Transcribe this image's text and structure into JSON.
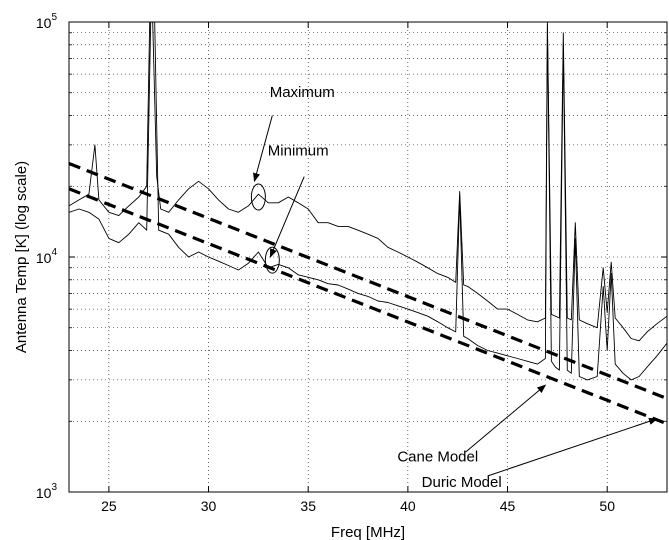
{
  "chart_data": {
    "type": "line",
    "xlabel": "Freq [MHz]",
    "ylabel": "Antenna Temp [K] (log scale)",
    "xlim": [
      23,
      53
    ],
    "ylim": [
      1000,
      100000
    ],
    "yscale": "log",
    "grid": true,
    "grid_style": "dotted",
    "x_ticks": [
      25,
      30,
      35,
      40,
      45,
      50
    ],
    "x_tick_labels": [
      "25",
      "30",
      "35",
      "40",
      "45",
      "50"
    ],
    "y_ticks": [
      1000,
      10000,
      100000
    ],
    "y_tick_labels": [
      {
        "base": "10",
        "exp": "3"
      },
      {
        "base": "10",
        "exp": "4"
      },
      {
        "base": "10",
        "exp": "5"
      }
    ],
    "series": [
      {
        "style": "thin-solid",
        "points": [
          [
            23.0,
            16500
          ],
          [
            23.5,
            17500
          ],
          [
            24.0,
            18500
          ],
          [
            24.3,
            30000
          ],
          [
            24.5,
            17500
          ],
          [
            25.0,
            15500
          ],
          [
            25.5,
            15000
          ],
          [
            26.0,
            16500
          ],
          [
            26.5,
            18000
          ],
          [
            26.9,
            20000
          ],
          [
            27.05,
            100000
          ],
          [
            27.2,
            100000
          ],
          [
            27.4,
            22000
          ],
          [
            27.6,
            16000
          ],
          [
            28.0,
            15500
          ],
          [
            28.5,
            17500
          ],
          [
            29.0,
            19500
          ],
          [
            29.5,
            21000
          ],
          [
            30.0,
            19500
          ],
          [
            30.5,
            17500
          ],
          [
            31.0,
            16000
          ],
          [
            31.5,
            15500
          ],
          [
            32.0,
            16500
          ],
          [
            32.5,
            18500
          ],
          [
            33.0,
            17000
          ],
          [
            33.5,
            17000
          ],
          [
            34.0,
            18000
          ],
          [
            34.5,
            17000
          ],
          [
            35.0,
            16000
          ],
          [
            35.5,
            14000
          ],
          [
            36.0,
            14000
          ],
          [
            36.5,
            13500
          ],
          [
            37.0,
            13500
          ],
          [
            37.5,
            13000
          ],
          [
            38.0,
            12500
          ],
          [
            38.5,
            12000
          ],
          [
            39.0,
            11000
          ],
          [
            39.5,
            10500
          ],
          [
            40.0,
            10000
          ],
          [
            40.5,
            9500
          ],
          [
            41.0,
            9000
          ],
          [
            41.5,
            8500
          ],
          [
            42.0,
            8200
          ],
          [
            42.4,
            7800
          ],
          [
            42.6,
            19000
          ],
          [
            42.8,
            7600
          ],
          [
            43.0,
            7500
          ],
          [
            43.5,
            7000
          ],
          [
            44.0,
            6500
          ],
          [
            44.5,
            6000
          ],
          [
            45.0,
            6000
          ],
          [
            45.5,
            5700
          ],
          [
            46.0,
            5400
          ],
          [
            46.5,
            5300
          ],
          [
            46.9,
            5500
          ],
          [
            47.0,
            100000
          ],
          [
            47.2,
            5700
          ],
          [
            47.4,
            5600
          ],
          [
            47.6,
            5500
          ],
          [
            47.8,
            90000
          ],
          [
            48.0,
            5500
          ],
          [
            48.2,
            5400
          ],
          [
            48.4,
            14000
          ],
          [
            48.6,
            5400
          ],
          [
            49.0,
            5200
          ],
          [
            49.5,
            5000
          ],
          [
            49.8,
            9000
          ],
          [
            50.0,
            5800
          ],
          [
            50.2,
            9500
          ],
          [
            50.4,
            5500
          ],
          [
            50.8,
            5000
          ],
          [
            51.2,
            4500
          ],
          [
            51.6,
            4400
          ],
          [
            52.0,
            4800
          ],
          [
            52.5,
            5200
          ],
          [
            53.0,
            5600
          ]
        ]
      },
      {
        "style": "thin-solid",
        "points": [
          [
            23.0,
            15500
          ],
          [
            23.5,
            16000
          ],
          [
            24.0,
            15500
          ],
          [
            24.5,
            14500
          ],
          [
            25.0,
            12000
          ],
          [
            25.5,
            11500
          ],
          [
            26.0,
            12500
          ],
          [
            26.5,
            14000
          ],
          [
            26.9,
            13000
          ],
          [
            27.1,
            100000
          ],
          [
            27.3,
            100000
          ],
          [
            27.5,
            13000
          ],
          [
            28.0,
            12500
          ],
          [
            28.5,
            11000
          ],
          [
            29.0,
            10000
          ],
          [
            29.5,
            10500
          ],
          [
            30.0,
            10000
          ],
          [
            30.5,
            9600
          ],
          [
            31.0,
            9200
          ],
          [
            31.5,
            8800
          ],
          [
            32.0,
            9400
          ],
          [
            32.5,
            10500
          ],
          [
            33.0,
            9000
          ],
          [
            33.5,
            9300
          ],
          [
            34.0,
            9000
          ],
          [
            34.5,
            8400
          ],
          [
            35.0,
            8200
          ],
          [
            35.5,
            8000
          ],
          [
            36.0,
            7700
          ],
          [
            36.5,
            7600
          ],
          [
            37.0,
            7300
          ],
          [
            37.5,
            7000
          ],
          [
            38.0,
            6800
          ],
          [
            38.5,
            6500
          ],
          [
            39.0,
            6400
          ],
          [
            39.5,
            6200
          ],
          [
            40.0,
            6000
          ],
          [
            40.5,
            5800
          ],
          [
            41.0,
            5600
          ],
          [
            41.5,
            5300
          ],
          [
            42.0,
            5000
          ],
          [
            42.4,
            4800
          ],
          [
            42.6,
            18000
          ],
          [
            42.8,
            4600
          ],
          [
            43.0,
            4500
          ],
          [
            43.5,
            4200
          ],
          [
            44.0,
            4000
          ],
          [
            44.5,
            3900
          ],
          [
            45.0,
            3800
          ],
          [
            45.5,
            3700
          ],
          [
            46.0,
            3600
          ],
          [
            46.5,
            3500
          ],
          [
            46.9,
            3700
          ],
          [
            47.0,
            98000
          ],
          [
            47.2,
            3600
          ],
          [
            47.4,
            3400
          ],
          [
            47.6,
            3300
          ],
          [
            47.8,
            80000
          ],
          [
            48.0,
            3300
          ],
          [
            48.2,
            3200
          ],
          [
            48.4,
            12000
          ],
          [
            48.6,
            3100
          ],
          [
            49.0,
            3000
          ],
          [
            49.5,
            3100
          ],
          [
            49.8,
            7500
          ],
          [
            50.0,
            4000
          ],
          [
            50.2,
            8500
          ],
          [
            50.4,
            3500
          ],
          [
            50.8,
            3200
          ],
          [
            51.2,
            3000
          ],
          [
            51.6,
            3100
          ],
          [
            52.0,
            3400
          ],
          [
            52.5,
            3800
          ],
          [
            53.0,
            4300
          ]
        ]
      },
      {
        "style": "thick-dashed",
        "points": [
          [
            23,
            25000
          ],
          [
            53,
            2500
          ]
        ]
      },
      {
        "style": "thick-dashed",
        "points": [
          [
            23,
            19500
          ],
          [
            53,
            1950
          ]
        ]
      }
    ],
    "annotations": [
      {
        "text": "Maximum",
        "text_at": [
          34.7,
          48000
        ],
        "arrow_from": [
          33.2,
          40000
        ],
        "arrow_to": [
          32.3,
          21000
        ]
      },
      {
        "text": "Minimum",
        "text_at": [
          34.5,
          27000
        ],
        "arrow_from": [
          34.8,
          22000
        ],
        "arrow_to": [
          33.1,
          10000
        ]
      },
      {
        "text": "Cane Model",
        "text_at": [
          41.5,
          1350
        ],
        "arrow_from": [
          42.9,
          1480
        ],
        "arrow_to": [
          46.9,
          2850
        ]
      },
      {
        "text": "Duric Model",
        "text_at": [
          42.7,
          1050
        ],
        "arrow_from": [
          44.0,
          1170
        ],
        "arrow_to": [
          52.5,
          2050
        ]
      }
    ],
    "circles": [
      {
        "center": [
          32.5,
          18000
        ]
      },
      {
        "center": [
          33.2,
          9700
        ]
      }
    ]
  }
}
